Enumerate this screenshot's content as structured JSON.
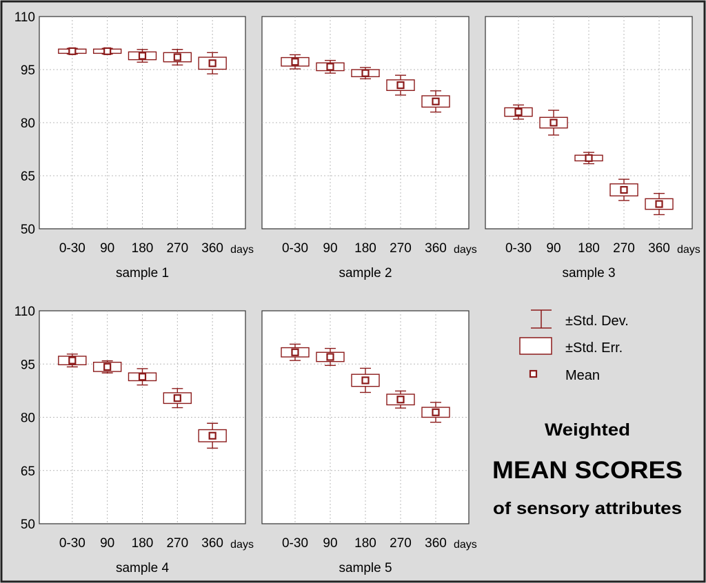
{
  "title": {
    "line1": "Weighted",
    "line2": "MEAN SCORES",
    "line3": "of sensory attributes"
  },
  "legend": {
    "std_dev": "±Std. Dev.",
    "std_err": "±Std. Err.",
    "mean": "Mean"
  },
  "colors": {
    "marks": "#8b1a1a",
    "background": "#dcdcdc",
    "plot": "#ffffff",
    "grid": "#b8b8b8"
  },
  "chart_data": {
    "type": "box",
    "ylim": [
      50,
      110
    ],
    "yticks": [
      "110",
      "95",
      "80",
      "65",
      "50"
    ],
    "ytick_values": [
      110,
      95,
      80,
      65,
      50
    ],
    "categories": [
      "0-30",
      "90",
      "180",
      "270",
      "360"
    ],
    "x_unit": "days",
    "panels": [
      {
        "xlabel": "sample 1",
        "mean": [
          100.2,
          100.2,
          98.9,
          98.5,
          96.8
        ],
        "std_err": [
          0.6,
          0.6,
          1.1,
          1.3,
          1.7
        ],
        "std_dev": [
          0.8,
          0.8,
          1.8,
          2.2,
          3.0
        ]
      },
      {
        "xlabel": "sample 2",
        "mean": [
          97.2,
          95.8,
          94.0,
          90.6,
          86.0
        ],
        "std_err": [
          1.2,
          1.1,
          1.0,
          1.5,
          1.6
        ],
        "std_dev": [
          2.0,
          1.8,
          1.6,
          2.8,
          3.0
        ]
      },
      {
        "xlabel": "sample 3",
        "mean": [
          83.0,
          80.0,
          70.0,
          61.0,
          57.0
        ],
        "std_err": [
          1.2,
          1.5,
          0.8,
          1.7,
          1.5
        ],
        "std_dev": [
          2.0,
          3.5,
          1.6,
          3.0,
          3.0
        ]
      },
      {
        "xlabel": "sample 4",
        "mean": [
          96.0,
          94.2,
          91.4,
          85.4,
          74.8
        ],
        "std_err": [
          1.2,
          1.3,
          1.1,
          1.5,
          1.7
        ],
        "std_dev": [
          1.8,
          1.7,
          2.3,
          2.7,
          3.5
        ]
      },
      {
        "xlabel": "sample 5",
        "mean": [
          98.3,
          97.0,
          90.4,
          85.0,
          81.4
        ],
        "std_err": [
          1.3,
          1.3,
          1.7,
          1.5,
          1.4
        ],
        "std_dev": [
          2.3,
          2.4,
          3.4,
          2.4,
          2.8
        ]
      }
    ]
  }
}
